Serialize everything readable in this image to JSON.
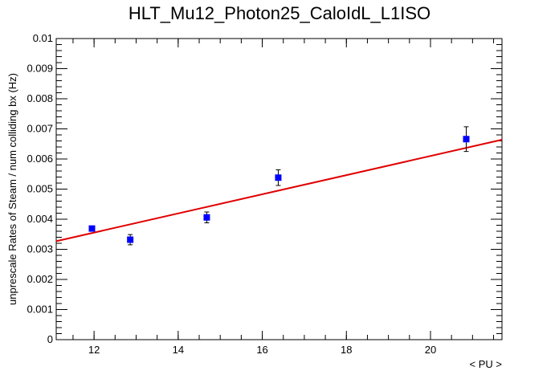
{
  "chart_data": {
    "type": "scatter",
    "title": "HLT_Mu12_Photon25_CaloIdL_L1ISO",
    "xlabel": "< PU >",
    "ylabel": "unprescale Rates of Steam / num colliding bx (Hz)",
    "xlim": [
      11.1,
      21.7
    ],
    "ylim": [
      0,
      0.01
    ],
    "x_ticks": [
      12,
      14,
      16,
      18,
      20
    ],
    "x_tick_labels": [
      "12",
      "14",
      "16",
      "18",
      "20"
    ],
    "y_ticks": [
      0,
      0.001,
      0.002,
      0.003,
      0.004,
      0.005,
      0.006,
      0.007,
      0.008,
      0.009,
      0.01
    ],
    "y_tick_labels": [
      "0",
      "0.001",
      "0.002",
      "0.003",
      "0.004",
      "0.005",
      "0.006",
      "0.007",
      "0.008",
      "0.009",
      "0.01"
    ],
    "grid": false,
    "series": [
      {
        "points": [
          {
            "x": 11.95,
            "y": 0.00369,
            "err": 4e-05
          },
          {
            "x": 12.86,
            "y": 0.00332,
            "err": 0.00017
          },
          {
            "x": 14.68,
            "y": 0.00406,
            "err": 0.00018
          },
          {
            "x": 16.38,
            "y": 0.00538,
            "err": 0.00026
          },
          {
            "x": 20.85,
            "y": 0.00666,
            "err": 0.00041
          }
        ],
        "color": "#0000ff"
      }
    ],
    "fit": {
      "x": [
        11.1,
        21.7
      ],
      "y": [
        0.00327,
        0.00664
      ],
      "color": "#e00000"
    }
  }
}
